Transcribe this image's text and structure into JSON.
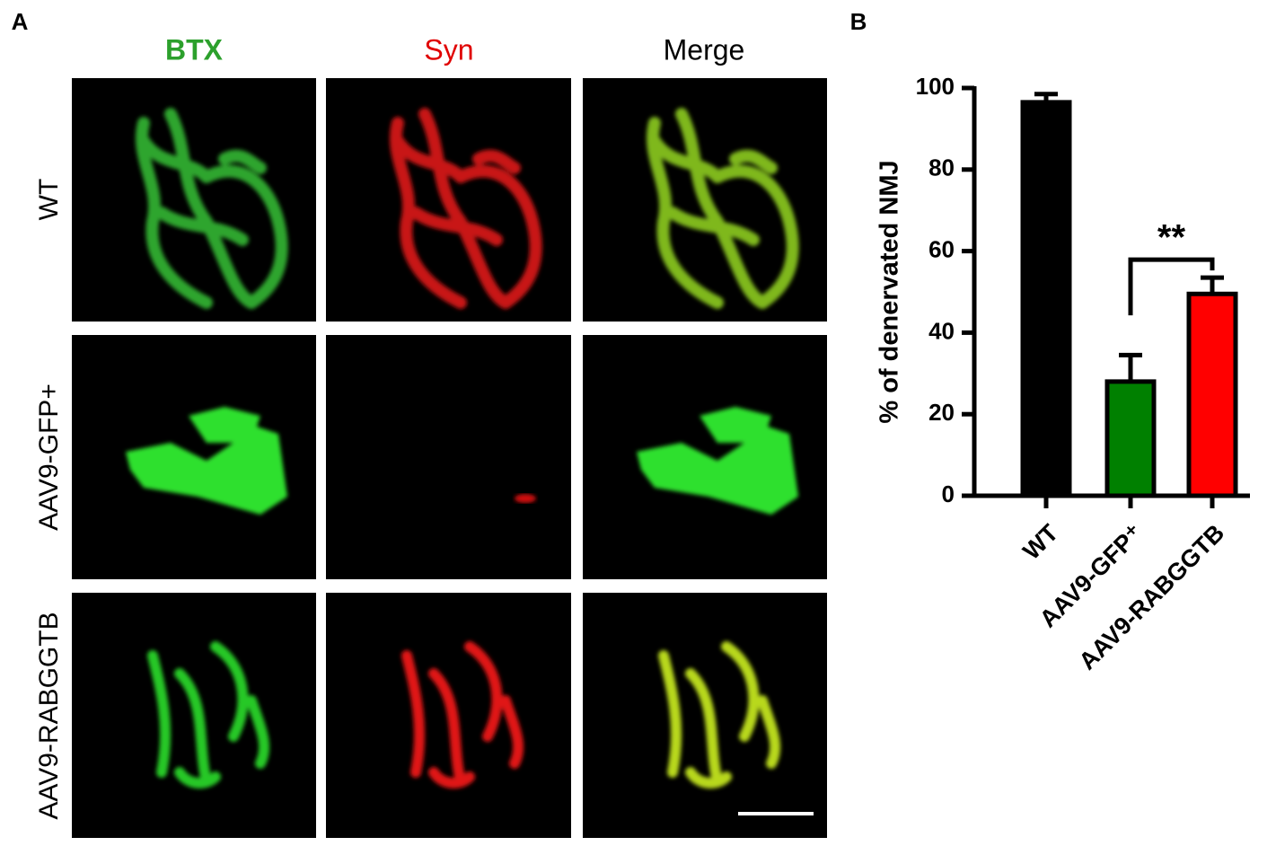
{
  "panel_a": {
    "letter": "A",
    "columns": [
      "BTX",
      "Syn",
      "Merge"
    ],
    "rows": [
      "WT",
      "AAV9-GFP+",
      "AAV9-RABGGTB"
    ]
  },
  "chart_data": {
    "type": "bar",
    "letter": "B",
    "y_label": "% of denervated NMJ",
    "categories": [
      "WT",
      "AAV9-GFP⁺",
      "AAV9-RABGGTB"
    ],
    "values": [
      96.5,
      28,
      49.5
    ],
    "errors": [
      2,
      6.5,
      4
    ],
    "colors": [
      "#000000",
      "#008000",
      "#ff0000"
    ],
    "ylim": [
      0,
      100
    ],
    "yticks": [
      0,
      20,
      40,
      60,
      80,
      100
    ],
    "significance": {
      "label": "**",
      "between": [
        "AAV9-GFP⁺",
        "AAV9-RABGGTB"
      ]
    }
  }
}
